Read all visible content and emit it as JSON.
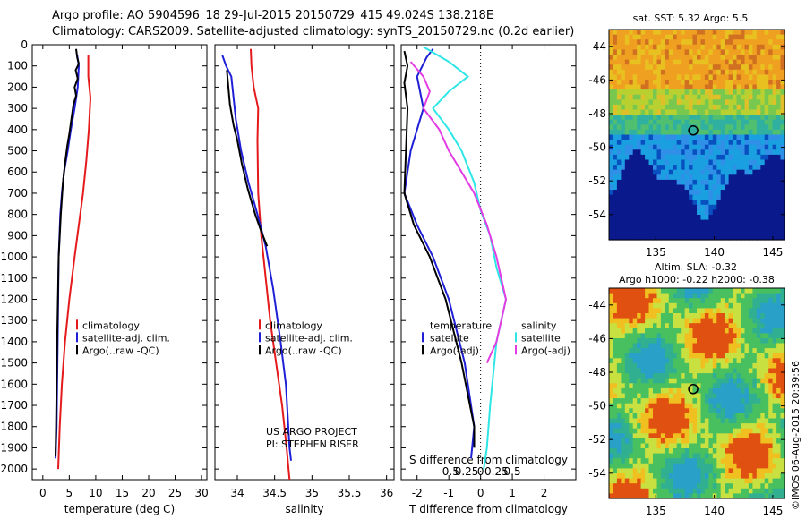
{
  "title": {
    "line1": "Argo profile: AO 5904596_18 29-Jul-2015 20150729_415 49.024S 138.218E",
    "line2": "Climatology: CARS2009. Satellite-adjusted climatology: synTS_20150729.nc (0.2d earlier)"
  },
  "colors": {
    "climatology": "#e41a1c",
    "satellite": "#1f1fd6",
    "argo": "#000000",
    "salinity_sat": "#2ee6e6",
    "salinity_argo": "#e43ce4"
  },
  "depth_axis": {
    "ticks": [
      0,
      100,
      200,
      300,
      400,
      500,
      600,
      700,
      800,
      900,
      1000,
      1100,
      1200,
      1300,
      1400,
      1500,
      1600,
      1700,
      1800,
      1900,
      2000
    ],
    "range": [
      0,
      2050
    ]
  },
  "chart_data": [
    {
      "type": "line",
      "panel": "temperature",
      "xlabel": "temperature (deg C)",
      "xlim": [
        -2,
        31
      ],
      "xticks": [
        0,
        5,
        10,
        15,
        20,
        25,
        30
      ],
      "legend": [
        "climatology",
        "satellite-adj. clim.",
        "Argo(..raw -QC)"
      ],
      "series": [
        {
          "name": "climatology",
          "color": "climatology",
          "points": [
            [
              8.6,
              50
            ],
            [
              8.6,
              150
            ],
            [
              9.0,
              250
            ],
            [
              8.7,
              400
            ],
            [
              8.2,
              550
            ],
            [
              7.6,
              700
            ],
            [
              6.8,
              850
            ],
            [
              6.0,
              1000
            ],
            [
              5.0,
              1200
            ],
            [
              4.2,
              1400
            ],
            [
              3.6,
              1600
            ],
            [
              3.2,
              1800
            ],
            [
              2.9,
              2000
            ]
          ]
        },
        {
          "name": "satellite-adj. clim.",
          "color": "satellite",
          "points": [
            [
              6.5,
              50
            ],
            [
              6.8,
              100
            ],
            [
              6.6,
              200
            ],
            [
              6.0,
              300
            ],
            [
              5.3,
              400
            ],
            [
              4.7,
              500
            ],
            [
              4.0,
              600
            ],
            [
              3.6,
              700
            ],
            [
              3.3,
              800
            ],
            [
              3.0,
              1000
            ],
            [
              2.8,
              1400
            ],
            [
              2.6,
              1800
            ],
            [
              2.4,
              1950
            ]
          ]
        },
        {
          "name": "Argo(..raw -QC)",
          "color": "argo",
          "points": [
            [
              6.3,
              20
            ],
            [
              6.5,
              60
            ],
            [
              6.8,
              90
            ],
            [
              6.2,
              120
            ],
            [
              6.6,
              160
            ],
            [
              6.0,
              200
            ],
            [
              6.3,
              240
            ],
            [
              5.8,
              280
            ],
            [
              5.4,
              350
            ],
            [
              5.0,
              420
            ],
            [
              4.6,
              480
            ],
            [
              4.2,
              560
            ],
            [
              3.8,
              650
            ],
            [
              3.4,
              800
            ],
            [
              3.0,
              1000
            ],
            [
              2.7,
              1400
            ],
            [
              2.5,
              1800
            ],
            [
              2.4,
              1940
            ]
          ]
        }
      ]
    },
    {
      "type": "line",
      "panel": "salinity",
      "xlabel": "salinity",
      "xlim": [
        33.7,
        36.1
      ],
      "xticks": [
        34,
        34.5,
        35,
        35.5,
        36
      ],
      "legend": [
        "climatology",
        "satellite-adj. clim.",
        "Argo(..raw -QC)"
      ],
      "credit": [
        "US ARGO PROJECT",
        "PI: STEPHEN RISER"
      ],
      "series": [
        {
          "name": "climatology",
          "color": "climatology",
          "points": [
            [
              34.18,
              20
            ],
            [
              34.19,
              100
            ],
            [
              34.22,
              200
            ],
            [
              34.28,
              300
            ],
            [
              34.27,
              450
            ],
            [
              34.28,
              700
            ],
            [
              34.32,
              900
            ],
            [
              34.38,
              1100
            ],
            [
              34.44,
              1300
            ],
            [
              34.52,
              1500
            ],
            [
              34.6,
              1700
            ],
            [
              34.66,
              1900
            ],
            [
              34.7,
              2050
            ]
          ]
        },
        {
          "name": "satellite-adj. clim.",
          "color": "satellite",
          "points": [
            [
              33.8,
              50
            ],
            [
              33.85,
              100
            ],
            [
              33.92,
              150
            ],
            [
              33.95,
              250
            ],
            [
              33.98,
              350
            ],
            [
              34.05,
              500
            ],
            [
              34.15,
              650
            ],
            [
              34.27,
              800
            ],
            [
              34.38,
              950
            ],
            [
              34.48,
              1150
            ],
            [
              34.58,
              1400
            ],
            [
              34.65,
              1600
            ],
            [
              34.7,
              1900
            ],
            [
              34.72,
              1960
            ]
          ]
        },
        {
          "name": "Argo(..raw -QC)",
          "color": "argo",
          "points": [
            [
              33.86,
              120
            ],
            [
              33.88,
              200
            ],
            [
              33.9,
              280
            ],
            [
              33.95,
              380
            ],
            [
              34.0,
              450
            ],
            [
              34.06,
              560
            ],
            [
              34.14,
              680
            ],
            [
              34.24,
              800
            ],
            [
              34.32,
              880
            ],
            [
              34.4,
              950
            ]
          ]
        }
      ]
    },
    {
      "type": "line",
      "panel": "difference",
      "xlabel": "T difference from climatology",
      "x2label": "S difference from climatology",
      "xlim": [
        -2.5,
        3
      ],
      "xticks": [
        -2,
        -1,
        0,
        1,
        2
      ],
      "x2ticks": [
        "-0.5",
        "-0.25",
        "0",
        "0.25",
        "0.5"
      ],
      "legend_left": [
        "temperature",
        "satellite",
        "Argo(-adj)"
      ],
      "legend_right": [
        "salinity",
        "satellite",
        "Argo(-adj)"
      ],
      "series": [
        {
          "name": "temperature satellite",
          "color": "satellite",
          "points": [
            [
              -1.5,
              20
            ],
            [
              -1.7,
              60
            ],
            [
              -2.0,
              150
            ],
            [
              -1.8,
              300
            ],
            [
              -2.2,
              500
            ],
            [
              -2.4,
              700
            ],
            [
              -2.0,
              850
            ],
            [
              -1.5,
              1000
            ],
            [
              -1.0,
              1200
            ],
            [
              -0.5,
              1500
            ],
            [
              -0.2,
              1800
            ],
            [
              -0.3,
              1950
            ]
          ]
        },
        {
          "name": "temperature Argo",
          "color": "argo",
          "points": [
            [
              -2.4,
              30
            ],
            [
              -2.3,
              100
            ],
            [
              -2.4,
              180
            ],
            [
              -2.3,
              300
            ],
            [
              -2.4,
              700
            ],
            [
              -2.1,
              850
            ],
            [
              -1.6,
              1000
            ],
            [
              -1.1,
              1200
            ],
            [
              -0.6,
              1500
            ],
            [
              -0.2,
              1800
            ],
            [
              -0.2,
              1900
            ]
          ]
        },
        {
          "name": "salinity satellite",
          "color": "salinity_sat",
          "points": [
            [
              -1.8,
              10
            ],
            [
              -1.0,
              80
            ],
            [
              -0.4,
              150
            ],
            [
              -1.0,
              220
            ],
            [
              -1.5,
              300
            ],
            [
              -1.0,
              400
            ],
            [
              -0.6,
              500
            ],
            [
              -0.2,
              650
            ],
            [
              0,
              780
            ],
            [
              0.3,
              900
            ],
            [
              0.5,
              1050
            ],
            [
              0.8,
              1200
            ],
            [
              0.5,
              1400
            ],
            [
              0.3,
              1700
            ],
            [
              0.2,
              1900
            ],
            [
              0.1,
              2000
            ]
          ]
        },
        {
          "name": "salinity Argo",
          "color": "salinity_argo",
          "points": [
            [
              -2.2,
              80
            ],
            [
              -1.8,
              150
            ],
            [
              -1.6,
              220
            ],
            [
              -1.8,
              300
            ],
            [
              -1.3,
              400
            ],
            [
              -1.0,
              500
            ],
            [
              -0.6,
              600
            ],
            [
              -0.2,
              700
            ],
            [
              0.2,
              850
            ],
            [
              0.5,
              1000
            ],
            [
              0.8,
              1200
            ],
            [
              0.5,
              1400
            ],
            [
              0.2,
              1500
            ]
          ]
        }
      ]
    },
    {
      "type": "heatmap",
      "panel": "sst_map",
      "title": "sat. SST: 5.32 Argo: 5.5",
      "xticks": [
        135,
        140,
        145
      ],
      "yticks": [
        -44,
        -46,
        -48,
        -50,
        -52,
        -54
      ],
      "xlim": [
        131,
        146
      ],
      "ylim": [
        -55.5,
        -43
      ],
      "marker": [
        138.2,
        -49.0
      ]
    },
    {
      "type": "heatmap",
      "panel": "sla_map",
      "title_lines": [
        "Altim. SLA: -0.32",
        "Argo h1000: -0.22 h2000: -0.38"
      ],
      "xticks": [
        135,
        140,
        145
      ],
      "yticks": [
        -44,
        -46,
        -48,
        -50,
        -52,
        -54
      ],
      "xlim": [
        131,
        146
      ],
      "ylim": [
        -55.5,
        -43
      ],
      "marker": [
        138.2,
        -49.0
      ]
    }
  ],
  "stamp": "©IMOS 06-Aug-2015 20:39:56"
}
